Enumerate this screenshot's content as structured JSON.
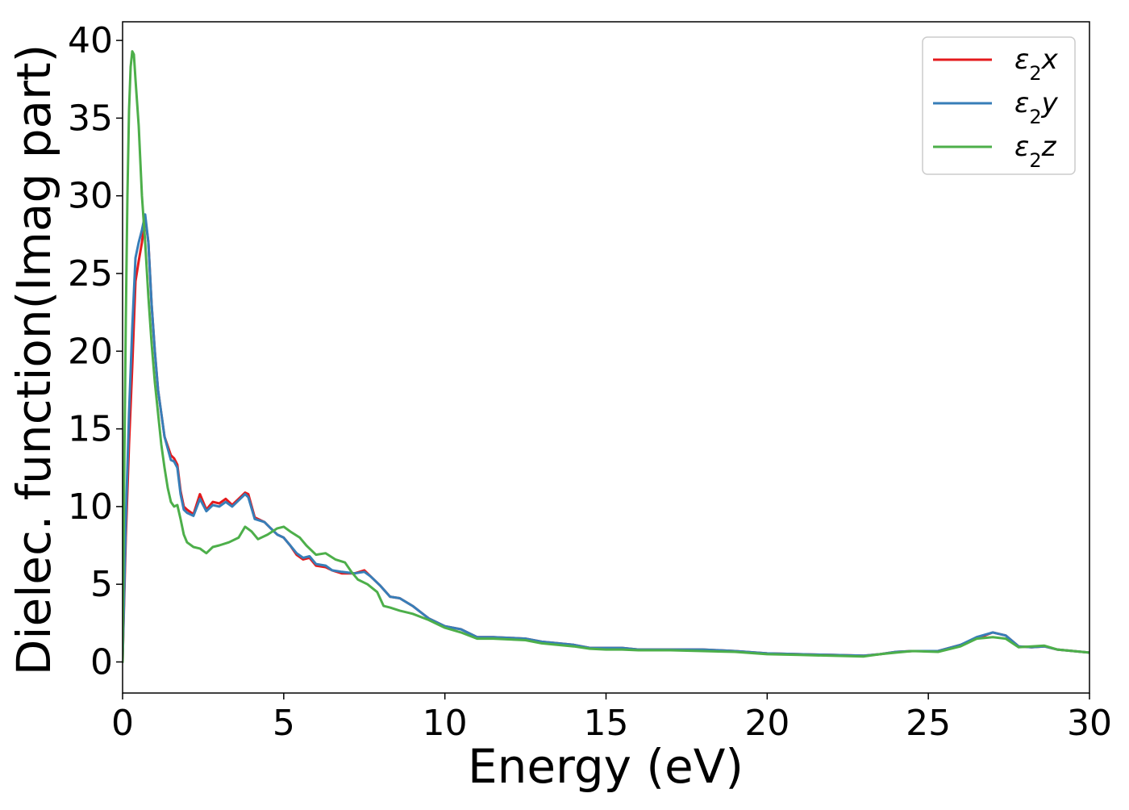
{
  "chart_data": {
    "type": "line",
    "title": "",
    "xlabel": "Energy (eV)",
    "ylabel": "Dielec. function(Imag part)",
    "xlim": [
      0,
      30
    ],
    "ylim": [
      -2,
      41.2
    ],
    "xticks": [
      0,
      5,
      10,
      15,
      20,
      25,
      30
    ],
    "xtick_labels": [
      "0",
      "5",
      "10",
      "15",
      "20",
      "25",
      "30"
    ],
    "yticks": [
      0,
      5,
      10,
      15,
      20,
      25,
      30,
      35,
      40
    ],
    "ytick_labels": [
      "0",
      "5",
      "10",
      "15",
      "20",
      "25",
      "30",
      "35",
      "40"
    ],
    "grid": false,
    "legend_position": "top-right",
    "series": [
      {
        "name": "ε₂x",
        "legend_base": "ε",
        "legend_sub": "2",
        "legend_var": "x",
        "color": "#e41a1c",
        "points": [
          [
            0,
            0
          ],
          [
            0.1,
            8
          ],
          [
            0.2,
            14
          ],
          [
            0.3,
            19
          ],
          [
            0.4,
            24.5
          ],
          [
            0.5,
            25.8
          ],
          [
            0.6,
            27
          ],
          [
            0.7,
            28.6
          ],
          [
            0.8,
            27
          ],
          [
            0.9,
            23
          ],
          [
            1.0,
            20
          ],
          [
            1.1,
            17.5
          ],
          [
            1.2,
            16
          ],
          [
            1.3,
            14.5
          ],
          [
            1.5,
            13.3
          ],
          [
            1.6,
            13.1
          ],
          [
            1.7,
            12.7
          ],
          [
            1.8,
            11
          ],
          [
            1.9,
            10
          ],
          [
            2.0,
            9.8
          ],
          [
            2.2,
            9.5
          ],
          [
            2.4,
            10.8
          ],
          [
            2.6,
            9.8
          ],
          [
            2.8,
            10.3
          ],
          [
            3.0,
            10.2
          ],
          [
            3.2,
            10.5
          ],
          [
            3.4,
            10.1
          ],
          [
            3.6,
            10.5
          ],
          [
            3.8,
            10.9
          ],
          [
            3.9,
            10.8
          ],
          [
            4.1,
            9.3
          ],
          [
            4.4,
            9.0
          ],
          [
            4.6,
            8.6
          ],
          [
            4.8,
            8.2
          ],
          [
            5.0,
            8.0
          ],
          [
            5.2,
            7.5
          ],
          [
            5.4,
            6.9
          ],
          [
            5.6,
            6.6
          ],
          [
            5.8,
            6.7
          ],
          [
            6.0,
            6.2
          ],
          [
            6.3,
            6.1
          ],
          [
            6.5,
            5.9
          ],
          [
            6.8,
            5.7
          ],
          [
            7.2,
            5.7
          ],
          [
            7.5,
            5.9
          ],
          [
            7.7,
            5.5
          ],
          [
            8.0,
            4.9
          ],
          [
            8.3,
            4.2
          ],
          [
            8.6,
            4.1
          ],
          [
            9.0,
            3.6
          ],
          [
            9.5,
            2.8
          ],
          [
            10.0,
            2.3
          ],
          [
            10.5,
            2.1
          ],
          [
            11.0,
            1.6
          ],
          [
            11.5,
            1.6
          ],
          [
            12.5,
            1.5
          ],
          [
            13.0,
            1.3
          ],
          [
            14.0,
            1.1
          ],
          [
            14.5,
            0.9
          ],
          [
            15.0,
            0.9
          ],
          [
            15.5,
            0.9
          ],
          [
            16.0,
            0.8
          ],
          [
            17.0,
            0.8
          ],
          [
            18.0,
            0.8
          ],
          [
            19.0,
            0.7
          ],
          [
            20.0,
            0.55
          ],
          [
            21.0,
            0.5
          ],
          [
            22.0,
            0.45
          ],
          [
            23.0,
            0.4
          ],
          [
            23.5,
            0.5
          ],
          [
            24.0,
            0.65
          ],
          [
            24.5,
            0.7
          ],
          [
            25.3,
            0.7
          ],
          [
            26.0,
            1.1
          ],
          [
            26.5,
            1.5
          ],
          [
            27.0,
            1.9
          ],
          [
            27.4,
            1.7
          ],
          [
            27.8,
            1.0
          ],
          [
            28.2,
            0.95
          ],
          [
            28.6,
            1.0
          ],
          [
            29.0,
            0.8
          ],
          [
            30.0,
            0.6
          ]
        ]
      },
      {
        "name": "ε₂y",
        "legend_base": "ε",
        "legend_sub": "2",
        "legend_var": "y",
        "color": "#377eb8",
        "points": [
          [
            0,
            0
          ],
          [
            0.1,
            9
          ],
          [
            0.2,
            16
          ],
          [
            0.3,
            21.5
          ],
          [
            0.4,
            26
          ],
          [
            0.5,
            27
          ],
          [
            0.6,
            27.8
          ],
          [
            0.7,
            28.8
          ],
          [
            0.8,
            27
          ],
          [
            0.9,
            23
          ],
          [
            1.0,
            20
          ],
          [
            1.1,
            17.5
          ],
          [
            1.2,
            16
          ],
          [
            1.3,
            14.5
          ],
          [
            1.5,
            13
          ],
          [
            1.6,
            12.9
          ],
          [
            1.7,
            12.5
          ],
          [
            1.8,
            10.8
          ],
          [
            1.9,
            9.8
          ],
          [
            2.0,
            9.6
          ],
          [
            2.2,
            9.4
          ],
          [
            2.4,
            10.5
          ],
          [
            2.6,
            9.7
          ],
          [
            2.8,
            10.1
          ],
          [
            3.0,
            10.0
          ],
          [
            3.2,
            10.3
          ],
          [
            3.4,
            10.0
          ],
          [
            3.6,
            10.4
          ],
          [
            3.8,
            10.8
          ],
          [
            3.9,
            10.6
          ],
          [
            4.1,
            9.2
          ],
          [
            4.4,
            9.0
          ],
          [
            4.6,
            8.6
          ],
          [
            4.8,
            8.2
          ],
          [
            5.0,
            8.0
          ],
          [
            5.2,
            7.5
          ],
          [
            5.4,
            7.0
          ],
          [
            5.6,
            6.7
          ],
          [
            5.8,
            6.8
          ],
          [
            6.0,
            6.3
          ],
          [
            6.3,
            6.2
          ],
          [
            6.5,
            5.9
          ],
          [
            6.8,
            5.8
          ],
          [
            7.2,
            5.7
          ],
          [
            7.5,
            5.8
          ],
          [
            7.7,
            5.5
          ],
          [
            8.0,
            4.9
          ],
          [
            8.3,
            4.2
          ],
          [
            8.6,
            4.1
          ],
          [
            9.0,
            3.6
          ],
          [
            9.5,
            2.8
          ],
          [
            10.0,
            2.3
          ],
          [
            10.5,
            2.1
          ],
          [
            11.0,
            1.6
          ],
          [
            11.5,
            1.6
          ],
          [
            12.5,
            1.5
          ],
          [
            13.0,
            1.3
          ],
          [
            14.0,
            1.1
          ],
          [
            14.5,
            0.9
          ],
          [
            15.0,
            0.9
          ],
          [
            15.5,
            0.9
          ],
          [
            16.0,
            0.8
          ],
          [
            17.0,
            0.8
          ],
          [
            18.0,
            0.8
          ],
          [
            19.0,
            0.7
          ],
          [
            20.0,
            0.55
          ],
          [
            21.0,
            0.5
          ],
          [
            22.0,
            0.45
          ],
          [
            23.0,
            0.4
          ],
          [
            23.5,
            0.5
          ],
          [
            24.0,
            0.65
          ],
          [
            24.5,
            0.7
          ],
          [
            25.3,
            0.7
          ],
          [
            26.0,
            1.1
          ],
          [
            26.5,
            1.6
          ],
          [
            27.0,
            1.9
          ],
          [
            27.4,
            1.7
          ],
          [
            27.8,
            1.0
          ],
          [
            28.2,
            0.95
          ],
          [
            28.6,
            1.0
          ],
          [
            29.0,
            0.8
          ],
          [
            30.0,
            0.6
          ]
        ]
      },
      {
        "name": "ε₂z",
        "legend_base": "ε",
        "legend_sub": "2",
        "legend_var": "z",
        "color": "#4daf4a",
        "points": [
          [
            0,
            0
          ],
          [
            0.05,
            12
          ],
          [
            0.1,
            22
          ],
          [
            0.15,
            30
          ],
          [
            0.2,
            35.5
          ],
          [
            0.25,
            38.3
          ],
          [
            0.3,
            39.3
          ],
          [
            0.35,
            39.1
          ],
          [
            0.4,
            37.5
          ],
          [
            0.5,
            34.5
          ],
          [
            0.6,
            30
          ],
          [
            0.7,
            27
          ],
          [
            0.8,
            23.5
          ],
          [
            0.9,
            20.5
          ],
          [
            1.0,
            18
          ],
          [
            1.1,
            16
          ],
          [
            1.2,
            14
          ],
          [
            1.3,
            12.5
          ],
          [
            1.4,
            11.2
          ],
          [
            1.5,
            10.3
          ],
          [
            1.6,
            10.0
          ],
          [
            1.7,
            10.1
          ],
          [
            1.8,
            9.2
          ],
          [
            1.9,
            8.2
          ],
          [
            2.0,
            7.7
          ],
          [
            2.2,
            7.4
          ],
          [
            2.4,
            7.3
          ],
          [
            2.6,
            7.0
          ],
          [
            2.8,
            7.4
          ],
          [
            3.0,
            7.5
          ],
          [
            3.3,
            7.7
          ],
          [
            3.6,
            8.0
          ],
          [
            3.8,
            8.7
          ],
          [
            4.0,
            8.4
          ],
          [
            4.2,
            7.9
          ],
          [
            4.5,
            8.2
          ],
          [
            4.8,
            8.6
          ],
          [
            5.0,
            8.7
          ],
          [
            5.2,
            8.4
          ],
          [
            5.5,
            8.0
          ],
          [
            5.7,
            7.5
          ],
          [
            6.0,
            6.9
          ],
          [
            6.3,
            7.0
          ],
          [
            6.6,
            6.6
          ],
          [
            6.9,
            6.4
          ],
          [
            7.1,
            5.8
          ],
          [
            7.3,
            5.3
          ],
          [
            7.6,
            5.0
          ],
          [
            7.9,
            4.5
          ],
          [
            8.1,
            3.6
          ],
          [
            8.3,
            3.5
          ],
          [
            8.6,
            3.3
          ],
          [
            9.0,
            3.1
          ],
          [
            9.5,
            2.7
          ],
          [
            10.0,
            2.2
          ],
          [
            10.5,
            1.9
          ],
          [
            11.0,
            1.5
          ],
          [
            11.5,
            1.5
          ],
          [
            12.5,
            1.4
          ],
          [
            13.0,
            1.2
          ],
          [
            14.0,
            1.0
          ],
          [
            14.5,
            0.85
          ],
          [
            15.0,
            0.8
          ],
          [
            15.5,
            0.8
          ],
          [
            16.0,
            0.75
          ],
          [
            17.0,
            0.75
          ],
          [
            18.0,
            0.7
          ],
          [
            19.0,
            0.65
          ],
          [
            20.0,
            0.5
          ],
          [
            21.0,
            0.45
          ],
          [
            22.0,
            0.4
          ],
          [
            23.0,
            0.35
          ],
          [
            23.5,
            0.5
          ],
          [
            24.0,
            0.6
          ],
          [
            24.5,
            0.7
          ],
          [
            25.3,
            0.65
          ],
          [
            26.0,
            1.0
          ],
          [
            26.5,
            1.5
          ],
          [
            27.0,
            1.6
          ],
          [
            27.4,
            1.5
          ],
          [
            27.8,
            0.95
          ],
          [
            28.2,
            1.0
          ],
          [
            28.6,
            1.05
          ],
          [
            29.0,
            0.8
          ],
          [
            30.0,
            0.6
          ]
        ]
      }
    ]
  }
}
